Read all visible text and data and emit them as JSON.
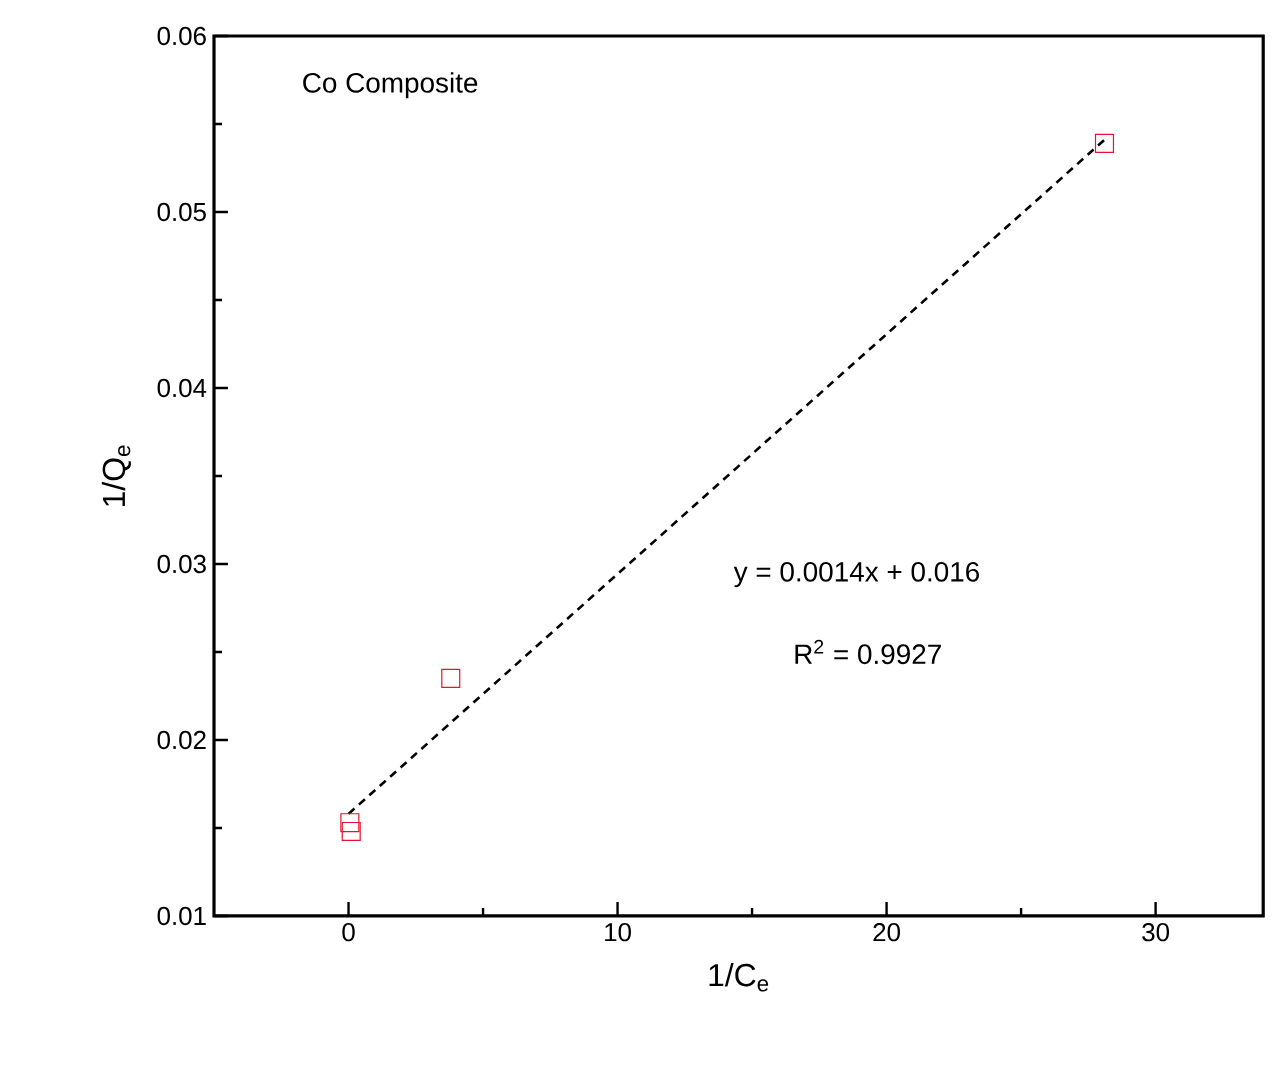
{
  "chart_data": {
    "type": "scatter",
    "xlabel": "1/C$_{e}$",
    "ylabel": "1/Q$_{e}$",
    "annotations": [
      "Co Composite",
      "y = 0.0014x + 0.016",
      "R$^{2}$ = 0.9927"
    ],
    "series": [
      {
        "type": "scatter",
        "color": "#e8132c",
        "marker": "square",
        "x": [
          0.05,
          0.1,
          3.8,
          28.1
        ],
        "values": [
          0.0153,
          0.0148,
          0.0235,
          0.0539
        ]
      },
      {
        "type": "line",
        "color": "#000000",
        "marker": "none",
        "line_style": "dashed",
        "x": [
          0,
          28.1
        ],
        "values": [
          0.0158,
          0.0541
        ]
      }
    ],
    "xlim": [
      -5,
      34
    ],
    "ylim": [
      0.01,
      0.06
    ],
    "xticks": [
      0,
      10,
      20,
      30
    ],
    "yticks": [
      0.01,
      0.02,
      0.03,
      0.04,
      0.05,
      0.06
    ]
  }
}
